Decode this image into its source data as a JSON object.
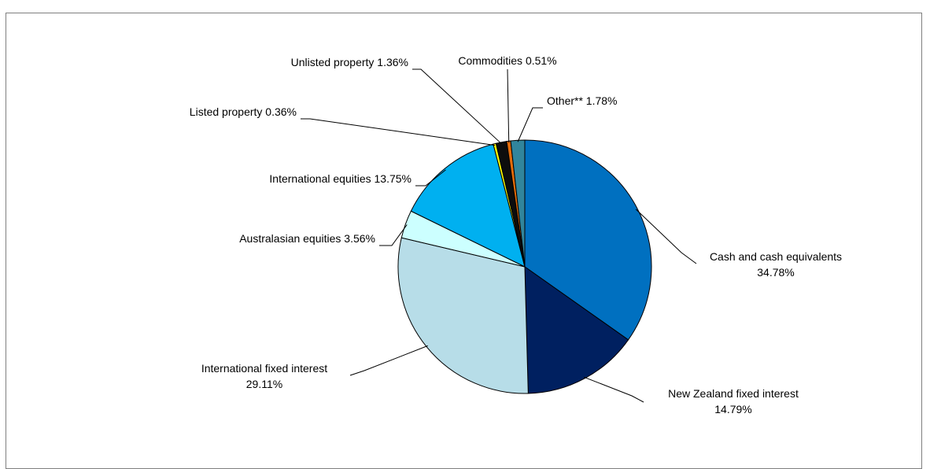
{
  "chart_data": {
    "type": "pie",
    "title": "",
    "slices": [
      {
        "label": "Cash and cash equivalents",
        "value_text": "34.78%",
        "value": 34.78,
        "color": "#0070c0"
      },
      {
        "label": "New Zealand fixed interest",
        "value_text": "14.79%",
        "value": 14.79,
        "color": "#002060"
      },
      {
        "label": "International fixed interest",
        "value_text": "29.11%",
        "value": 29.11,
        "color": "#b7dde8"
      },
      {
        "label": "Australasian equities",
        "value_text": "3.56%",
        "value": 3.56,
        "color": "#ccffff"
      },
      {
        "label": "International equities",
        "value_text": "13.75%",
        "value": 13.75,
        "color": "#00b0f0"
      },
      {
        "label": "Listed property",
        "value_text": "0.36%",
        "value": 0.36,
        "color": "#ffff00"
      },
      {
        "label": "Unlisted property",
        "value_text": "1.36%",
        "value": 1.36,
        "color": "#0d0d0d"
      },
      {
        "label": "Commodities",
        "value_text": "0.51%",
        "value": 0.51,
        "color": "#e46c0a"
      },
      {
        "label": "Other**",
        "value_text": "1.78%",
        "value": 1.78,
        "color": "#31859c"
      }
    ]
  }
}
